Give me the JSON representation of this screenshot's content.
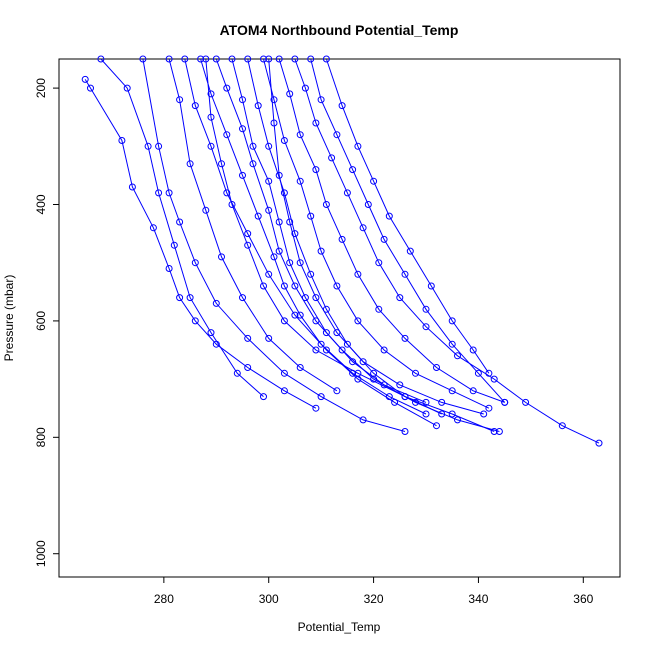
{
  "chart_data": {
    "type": "line",
    "title": "ATOM4 Northbound Potential_Temp",
    "xlabel": "Potential_Temp",
    "ylabel": "Pressure (mbar)",
    "xlim": [
      260,
      367
    ],
    "ylim": [
      1040,
      150
    ],
    "y_reversed": true,
    "x_ticks": [
      280,
      300,
      320,
      340,
      360
    ],
    "y_ticks": [
      200,
      400,
      600,
      800,
      1000
    ],
    "grid": false,
    "line_color": "#0000ff",
    "marker": "open-circle",
    "series": [
      {
        "x": [
          265,
          266,
          272,
          274,
          278,
          281,
          283,
          286,
          290,
          296,
          303,
          309
        ],
        "y": [
          185,
          200,
          290,
          370,
          440,
          510,
          560,
          600,
          640,
          680,
          720,
          750
        ]
      },
      {
        "x": [
          268,
          273,
          277,
          279,
          282,
          285,
          289,
          294,
          299
        ],
        "y": [
          150,
          200,
          300,
          380,
          470,
          560,
          620,
          690,
          730
        ]
      },
      {
        "x": [
          276,
          279,
          281,
          283,
          286,
          290,
          296,
          303,
          310,
          318,
          326
        ],
        "y": [
          150,
          300,
          380,
          430,
          500,
          570,
          630,
          690,
          730,
          770,
          790
        ]
      },
      {
        "x": [
          281,
          283,
          285,
          288,
          291,
          295,
          300,
          306,
          313
        ],
        "y": [
          150,
          220,
          330,
          410,
          490,
          560,
          630,
          680,
          720
        ]
      },
      {
        "x": [
          284,
          286,
          289,
          292,
          296,
          300,
          305,
          311,
          317,
          324,
          332
        ],
        "y": [
          150,
          230,
          300,
          380,
          450,
          520,
          590,
          650,
          700,
          740,
          780
        ]
      },
      {
        "x": [
          287,
          289,
          292,
          295,
          298,
          301,
          303,
          306,
          310,
          316,
          323,
          330
        ],
        "y": [
          150,
          210,
          280,
          350,
          420,
          490,
          540,
          590,
          640,
          690,
          730,
          760
        ]
      },
      {
        "x": [
          290,
          292,
          295,
          297,
          300,
          302,
          305,
          309,
          314,
          320,
          328,
          336,
          344
        ],
        "y": [
          150,
          200,
          270,
          330,
          410,
          480,
          540,
          600,
          650,
          700,
          740,
          770,
          790
        ]
      },
      {
        "x": [
          293,
          295,
          297,
          300,
          302,
          304,
          307,
          311,
          316,
          322,
          330
        ],
        "y": [
          150,
          220,
          300,
          360,
          430,
          500,
          560,
          620,
          670,
          710,
          740
        ]
      },
      {
        "x": [
          296,
          298,
          300,
          303,
          305,
          308,
          311,
          315,
          320,
          326,
          333
        ],
        "y": [
          150,
          230,
          300,
          380,
          450,
          520,
          580,
          640,
          690,
          730,
          760
        ]
      },
      {
        "x": [
          299,
          301,
          303,
          306,
          308,
          310,
          313,
          317,
          322,
          328,
          335,
          342
        ],
        "y": [
          150,
          220,
          290,
          360,
          420,
          480,
          540,
          600,
          650,
          690,
          720,
          750
        ]
      },
      {
        "x": [
          302,
          304,
          306,
          309,
          311,
          314,
          317,
          321,
          326,
          332,
          339,
          345
        ],
        "y": [
          150,
          210,
          280,
          340,
          400,
          460,
          520,
          580,
          630,
          680,
          720,
          740
        ]
      },
      {
        "x": [
          305,
          307,
          309,
          312,
          315,
          318,
          321,
          325,
          330,
          336,
          343,
          349,
          356,
          363
        ],
        "y": [
          150,
          200,
          260,
          320,
          380,
          440,
          500,
          560,
          610,
          660,
          700,
          740,
          780,
          810
        ]
      },
      {
        "x": [
          308,
          310,
          313,
          316,
          319,
          322,
          326,
          330,
          335,
          340,
          345
        ],
        "y": [
          150,
          220,
          280,
          340,
          400,
          460,
          520,
          580,
          640,
          690,
          740
        ]
      },
      {
        "x": [
          311,
          314,
          317,
          320,
          323,
          327,
          331,
          335,
          339,
          342
        ],
        "y": [
          150,
          230,
          300,
          360,
          420,
          480,
          540,
          600,
          650,
          690
        ]
      },
      {
        "x": [
          288,
          289,
          291,
          293,
          296,
          299,
          303,
          309,
          317,
          326,
          335,
          343
        ],
        "y": [
          150,
          250,
          330,
          400,
          470,
          540,
          600,
          650,
          690,
          730,
          760,
          790
        ]
      },
      {
        "x": [
          300,
          301,
          302,
          304,
          306,
          309,
          313,
          318,
          325,
          333,
          341
        ],
        "y": [
          150,
          260,
          350,
          430,
          500,
          560,
          620,
          670,
          710,
          740,
          760
        ]
      }
    ]
  }
}
